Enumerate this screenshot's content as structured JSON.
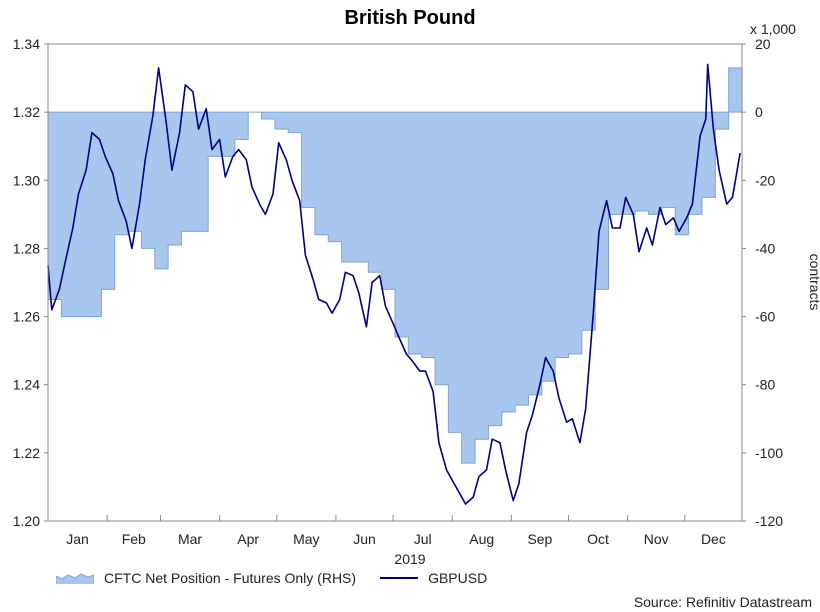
{
  "chart_data": {
    "type": "line",
    "title": "British Pound",
    "x_axis": {
      "year_label": "2019",
      "months": [
        "Jan",
        "Feb",
        "Mar",
        "Apr",
        "May",
        "Jun",
        "Jul",
        "Aug",
        "Sep",
        "Oct",
        "Nov",
        "Dec"
      ]
    },
    "y_left": {
      "ylim": [
        1.2,
        1.34
      ],
      "ticks": [
        "1.20",
        "1.22",
        "1.24",
        "1.26",
        "1.28",
        "1.30",
        "1.32",
        "1.34"
      ]
    },
    "y_right": {
      "ylim": [
        -120,
        20
      ],
      "ticks": [
        "-120",
        "-100",
        "-80",
        "-60",
        "-40",
        "-20",
        "0",
        "20"
      ],
      "label": "contracts",
      "multiplier": "x 1,000"
    },
    "grid": false,
    "legend_position": "bottom-left",
    "series": [
      {
        "name": "CFTC Net Position - Futures Only (RHS)",
        "type": "step-area",
        "axis": "right",
        "color": "#a7c7ee",
        "x": [
          "2019-01-01",
          "2019-01-08",
          "2019-01-15",
          "2019-01-22",
          "2019-01-29",
          "2019-02-05",
          "2019-02-12",
          "2019-02-19",
          "2019-02-26",
          "2019-03-05",
          "2019-03-12",
          "2019-03-19",
          "2019-03-26",
          "2019-04-02",
          "2019-04-09",
          "2019-04-16",
          "2019-04-23",
          "2019-04-30",
          "2019-05-07",
          "2019-05-14",
          "2019-05-21",
          "2019-05-28",
          "2019-06-04",
          "2019-06-11",
          "2019-06-18",
          "2019-06-25",
          "2019-07-02",
          "2019-07-09",
          "2019-07-16",
          "2019-07-23",
          "2019-07-30",
          "2019-08-06",
          "2019-08-13",
          "2019-08-20",
          "2019-08-27",
          "2019-09-03",
          "2019-09-10",
          "2019-09-17",
          "2019-09-24",
          "2019-10-01",
          "2019-10-08",
          "2019-10-15",
          "2019-10-22",
          "2019-10-29",
          "2019-11-05",
          "2019-11-12",
          "2019-11-19",
          "2019-11-26",
          "2019-12-03",
          "2019-12-10",
          "2019-12-17",
          "2019-12-24",
          "2019-12-31"
        ],
        "values": [
          -55,
          -60,
          -60,
          -60,
          -52,
          -36,
          -35,
          -40,
          -46,
          -39,
          -35,
          -35,
          -13,
          -13,
          -8,
          0,
          -2,
          -5,
          -6,
          -28,
          -36,
          -38,
          -44,
          -44,
          -47,
          -52,
          -66,
          -71,
          -72,
          -80,
          -94,
          -103,
          -96,
          -92,
          -88,
          -86,
          -83,
          -79,
          -72,
          -71,
          -64,
          -52,
          -30,
          -30,
          -29,
          -30,
          -28,
          -36,
          -30,
          -25,
          -5,
          13,
          8
        ]
      },
      {
        "name": "GBPUSD",
        "type": "line",
        "axis": "left",
        "color": "#000080",
        "x": [
          "2019-01-01",
          "2019-01-03",
          "2019-01-07",
          "2019-01-10",
          "2019-01-14",
          "2019-01-17",
          "2019-01-21",
          "2019-01-24",
          "2019-01-28",
          "2019-01-31",
          "2019-02-04",
          "2019-02-07",
          "2019-02-11",
          "2019-02-14",
          "2019-02-18",
          "2019-02-21",
          "2019-02-25",
          "2019-02-28",
          "2019-03-04",
          "2019-03-07",
          "2019-03-11",
          "2019-03-14",
          "2019-03-18",
          "2019-03-21",
          "2019-03-25",
          "2019-03-28",
          "2019-04-01",
          "2019-04-04",
          "2019-04-08",
          "2019-04-11",
          "2019-04-15",
          "2019-04-18",
          "2019-04-22",
          "2019-04-25",
          "2019-04-29",
          "2019-05-02",
          "2019-05-06",
          "2019-05-09",
          "2019-05-13",
          "2019-05-16",
          "2019-05-20",
          "2019-05-23",
          "2019-05-27",
          "2019-05-30",
          "2019-06-03",
          "2019-06-06",
          "2019-06-10",
          "2019-06-13",
          "2019-06-17",
          "2019-06-20",
          "2019-06-24",
          "2019-06-27",
          "2019-07-01",
          "2019-07-04",
          "2019-07-08",
          "2019-07-11",
          "2019-07-15",
          "2019-07-18",
          "2019-07-22",
          "2019-07-25",
          "2019-07-29",
          "2019-08-01",
          "2019-08-05",
          "2019-08-08",
          "2019-08-12",
          "2019-08-15",
          "2019-08-19",
          "2019-08-22",
          "2019-08-26",
          "2019-08-29",
          "2019-09-02",
          "2019-09-05",
          "2019-09-09",
          "2019-09-12",
          "2019-09-16",
          "2019-09-19",
          "2019-09-23",
          "2019-09-26",
          "2019-09-30",
          "2019-10-03",
          "2019-10-07",
          "2019-10-10",
          "2019-10-14",
          "2019-10-17",
          "2019-10-21",
          "2019-10-24",
          "2019-10-28",
          "2019-10-31",
          "2019-11-04",
          "2019-11-07",
          "2019-11-11",
          "2019-11-14",
          "2019-11-18",
          "2019-11-21",
          "2019-11-25",
          "2019-11-28",
          "2019-12-02",
          "2019-12-05",
          "2019-12-09",
          "2019-12-12",
          "2019-12-13",
          "2019-12-16",
          "2019-12-19",
          "2019-12-23",
          "2019-12-26",
          "2019-12-30"
        ],
        "values": [
          1.275,
          1.262,
          1.268,
          1.276,
          1.286,
          1.296,
          1.303,
          1.314,
          1.312,
          1.307,
          1.302,
          1.294,
          1.288,
          1.28,
          1.293,
          1.306,
          1.319,
          1.333,
          1.317,
          1.303,
          1.314,
          1.328,
          1.326,
          1.315,
          1.321,
          1.309,
          1.312,
          1.301,
          1.307,
          1.309,
          1.306,
          1.298,
          1.293,
          1.29,
          1.296,
          1.311,
          1.306,
          1.3,
          1.294,
          1.278,
          1.271,
          1.265,
          1.264,
          1.261,
          1.265,
          1.273,
          1.272,
          1.267,
          1.257,
          1.27,
          1.272,
          1.263,
          1.258,
          1.254,
          1.249,
          1.247,
          1.244,
          1.244,
          1.238,
          1.223,
          1.215,
          1.212,
          1.208,
          1.205,
          1.207,
          1.213,
          1.215,
          1.224,
          1.223,
          1.215,
          1.206,
          1.211,
          1.226,
          1.231,
          1.24,
          1.248,
          1.244,
          1.236,
          1.229,
          1.23,
          1.223,
          1.233,
          1.261,
          1.285,
          1.294,
          1.286,
          1.286,
          1.295,
          1.29,
          1.279,
          1.286,
          1.281,
          1.292,
          1.287,
          1.289,
          1.285,
          1.289,
          1.293,
          1.313,
          1.318,
          1.334,
          1.315,
          1.303,
          1.293,
          1.295,
          1.308
        ]
      }
    ]
  },
  "source": "Source: Refinitiv Datastream"
}
